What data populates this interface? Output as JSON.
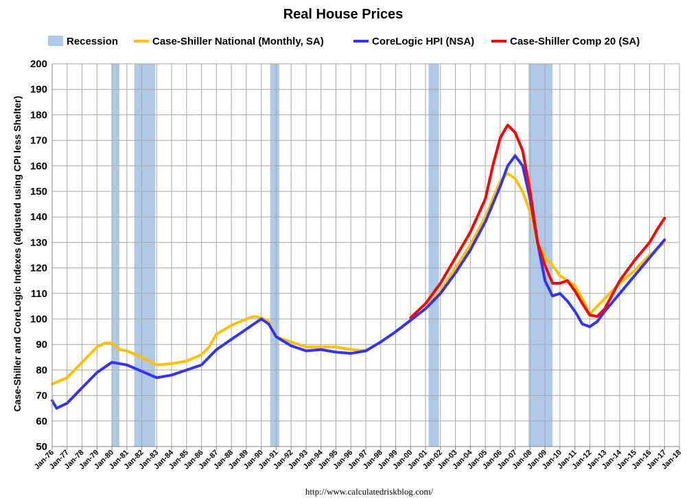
{
  "chart_data": {
    "type": "line",
    "title": "Real House Prices",
    "xlabel": "",
    "ylabel": "Case-Shiller and CoreLogic Indexes (adjusted using CPI less Shelter)",
    "ylim": [
      50,
      200
    ],
    "yticks": [
      50,
      60,
      70,
      80,
      90,
      100,
      110,
      120,
      130,
      140,
      150,
      160,
      170,
      180,
      190,
      200
    ],
    "xlim": [
      1976,
      2018
    ],
    "xtick_labels": [
      "Jan-76",
      "Jan-77",
      "Jan-78",
      "Jan-79",
      "Jan-80",
      "Jan-81",
      "Jan-82",
      "Jan-83",
      "Jan-84",
      "Jan-85",
      "Jan-86",
      "Jan-87",
      "Jan-88",
      "Jan-89",
      "Jan-90",
      "Jan-91",
      "Jan-92",
      "Jan-93",
      "Jan-94",
      "Jan-95",
      "Jan-96",
      "Jan-97",
      "Jan-98",
      "Jan-99",
      "Jan-00",
      "Jan-01",
      "Jan-02",
      "Jan-03",
      "Jan-04",
      "Jan-05",
      "Jan-06",
      "Jan-07",
      "Jan-08",
      "Jan-09",
      "Jan-10",
      "Jan-11",
      "Jan-12",
      "Jan-13",
      "Jan-14",
      "Jan-15",
      "Jan-16",
      "Jan-17",
      "Jan-18"
    ],
    "grid": true,
    "legend_placement": "top",
    "recessions": [
      [
        1980.0,
        1980.5
      ],
      [
        1981.5,
        1982.9
      ],
      [
        1990.6,
        1991.2
      ],
      [
        2001.2,
        2001.9
      ],
      [
        2007.9,
        2009.5
      ]
    ],
    "legend": [
      {
        "name": "Recession",
        "color": "#b0c8e8",
        "kind": "box"
      },
      {
        "name": "Case-Shiller National (Monthly, SA)",
        "color": "#ffc000",
        "kind": "line"
      },
      {
        "name": "CoreLogic HPI (NSA)",
        "color": "#3333ff",
        "kind": "line"
      },
      {
        "name": "Case-Shiller Comp 20  (SA)",
        "color": "#ff0000",
        "kind": "line"
      }
    ],
    "series": [
      {
        "name": "Case-Shiller National (Monthly, SA)",
        "color": "#ffc000",
        "x": [
          1976,
          1977,
          1978,
          1979,
          1979.5,
          1980,
          1980.5,
          1981,
          1982,
          1982.5,
          1983,
          1984,
          1985,
          1986,
          1986.5,
          1987,
          1988,
          1989,
          1989.5,
          1990,
          1990.5,
          1991,
          1992,
          1993,
          1994,
          1995,
          1996,
          1997,
          1998,
          1999,
          2000,
          2001,
          2002,
          2003,
          2004,
          2005,
          2006,
          2006.5,
          2007,
          2007.5,
          2008,
          2008.5,
          2009,
          2009.5,
          2010,
          2010.5,
          2011,
          2011.5,
          2012,
          2013,
          2014,
          2015,
          2016,
          2017
        ],
        "values": [
          74.5,
          77,
          83,
          89,
          90.5,
          90.5,
          88,
          87.5,
          85,
          83.5,
          82,
          82.5,
          83.5,
          86,
          89,
          94,
          97.5,
          100,
          101,
          100.5,
          99,
          93,
          91,
          89,
          89,
          89,
          88,
          87.5,
          91,
          95,
          99.5,
          104,
          111,
          120,
          129,
          140,
          154,
          157,
          155,
          150,
          142,
          130,
          124,
          121,
          117,
          115,
          113,
          108,
          102,
          108,
          114,
          119,
          125,
          130
        ]
      },
      {
        "name": "CoreLogic HPI (NSA)",
        "color": "#3333ff",
        "x": [
          1976,
          1976.3,
          1977,
          1978,
          1979,
          1980,
          1981,
          1982,
          1983,
          1984,
          1985,
          1986,
          1987,
          1988,
          1989,
          1989.5,
          1990,
          1990.5,
          1991,
          1992,
          1993,
          1994,
          1995,
          1996,
          1997,
          1998,
          1999,
          2000,
          2001,
          2002,
          2003,
          2004,
          2005,
          2006,
          2006.5,
          2007,
          2007.5,
          2008,
          2008.5,
          2009,
          2009.5,
          2010,
          2010.5,
          2011,
          2011.5,
          2012,
          2012.5,
          2013,
          2014,
          2015,
          2016,
          2017
        ],
        "values": [
          68,
          65,
          67,
          73,
          79,
          83,
          82,
          79.5,
          77,
          78,
          80,
          82,
          88,
          92,
          96,
          98,
          100,
          98,
          93,
          89.5,
          87.5,
          88,
          87,
          86.5,
          87.5,
          91,
          95,
          99.5,
          104,
          110,
          118,
          127,
          138,
          152,
          160,
          164,
          160,
          147,
          130,
          115,
          109,
          110,
          107,
          103,
          98,
          97,
          99,
          103,
          110,
          117,
          124,
          131
        ]
      },
      {
        "name": "Case-Shiller Comp 20  (SA)",
        "color": "#ff0000",
        "x": [
          2000,
          2001,
          2002,
          2003,
          2004,
          2005,
          2005.5,
          2006,
          2006.5,
          2007,
          2007.5,
          2008,
          2008.5,
          2009,
          2009.5,
          2010,
          2010.5,
          2011,
          2011.5,
          2012,
          2012.5,
          2013,
          2014,
          2015,
          2016,
          2016.5,
          2017
        ],
        "values": [
          100.5,
          106,
          114,
          124,
          134,
          147,
          160,
          171,
          176,
          173,
          166,
          150,
          130,
          121,
          114,
          114,
          115,
          111,
          106,
          101.5,
          101,
          104,
          115,
          123,
          130,
          135,
          139.5
        ]
      }
    ]
  },
  "footer": {
    "source": "http://www.calculatedriskblog.com/"
  }
}
